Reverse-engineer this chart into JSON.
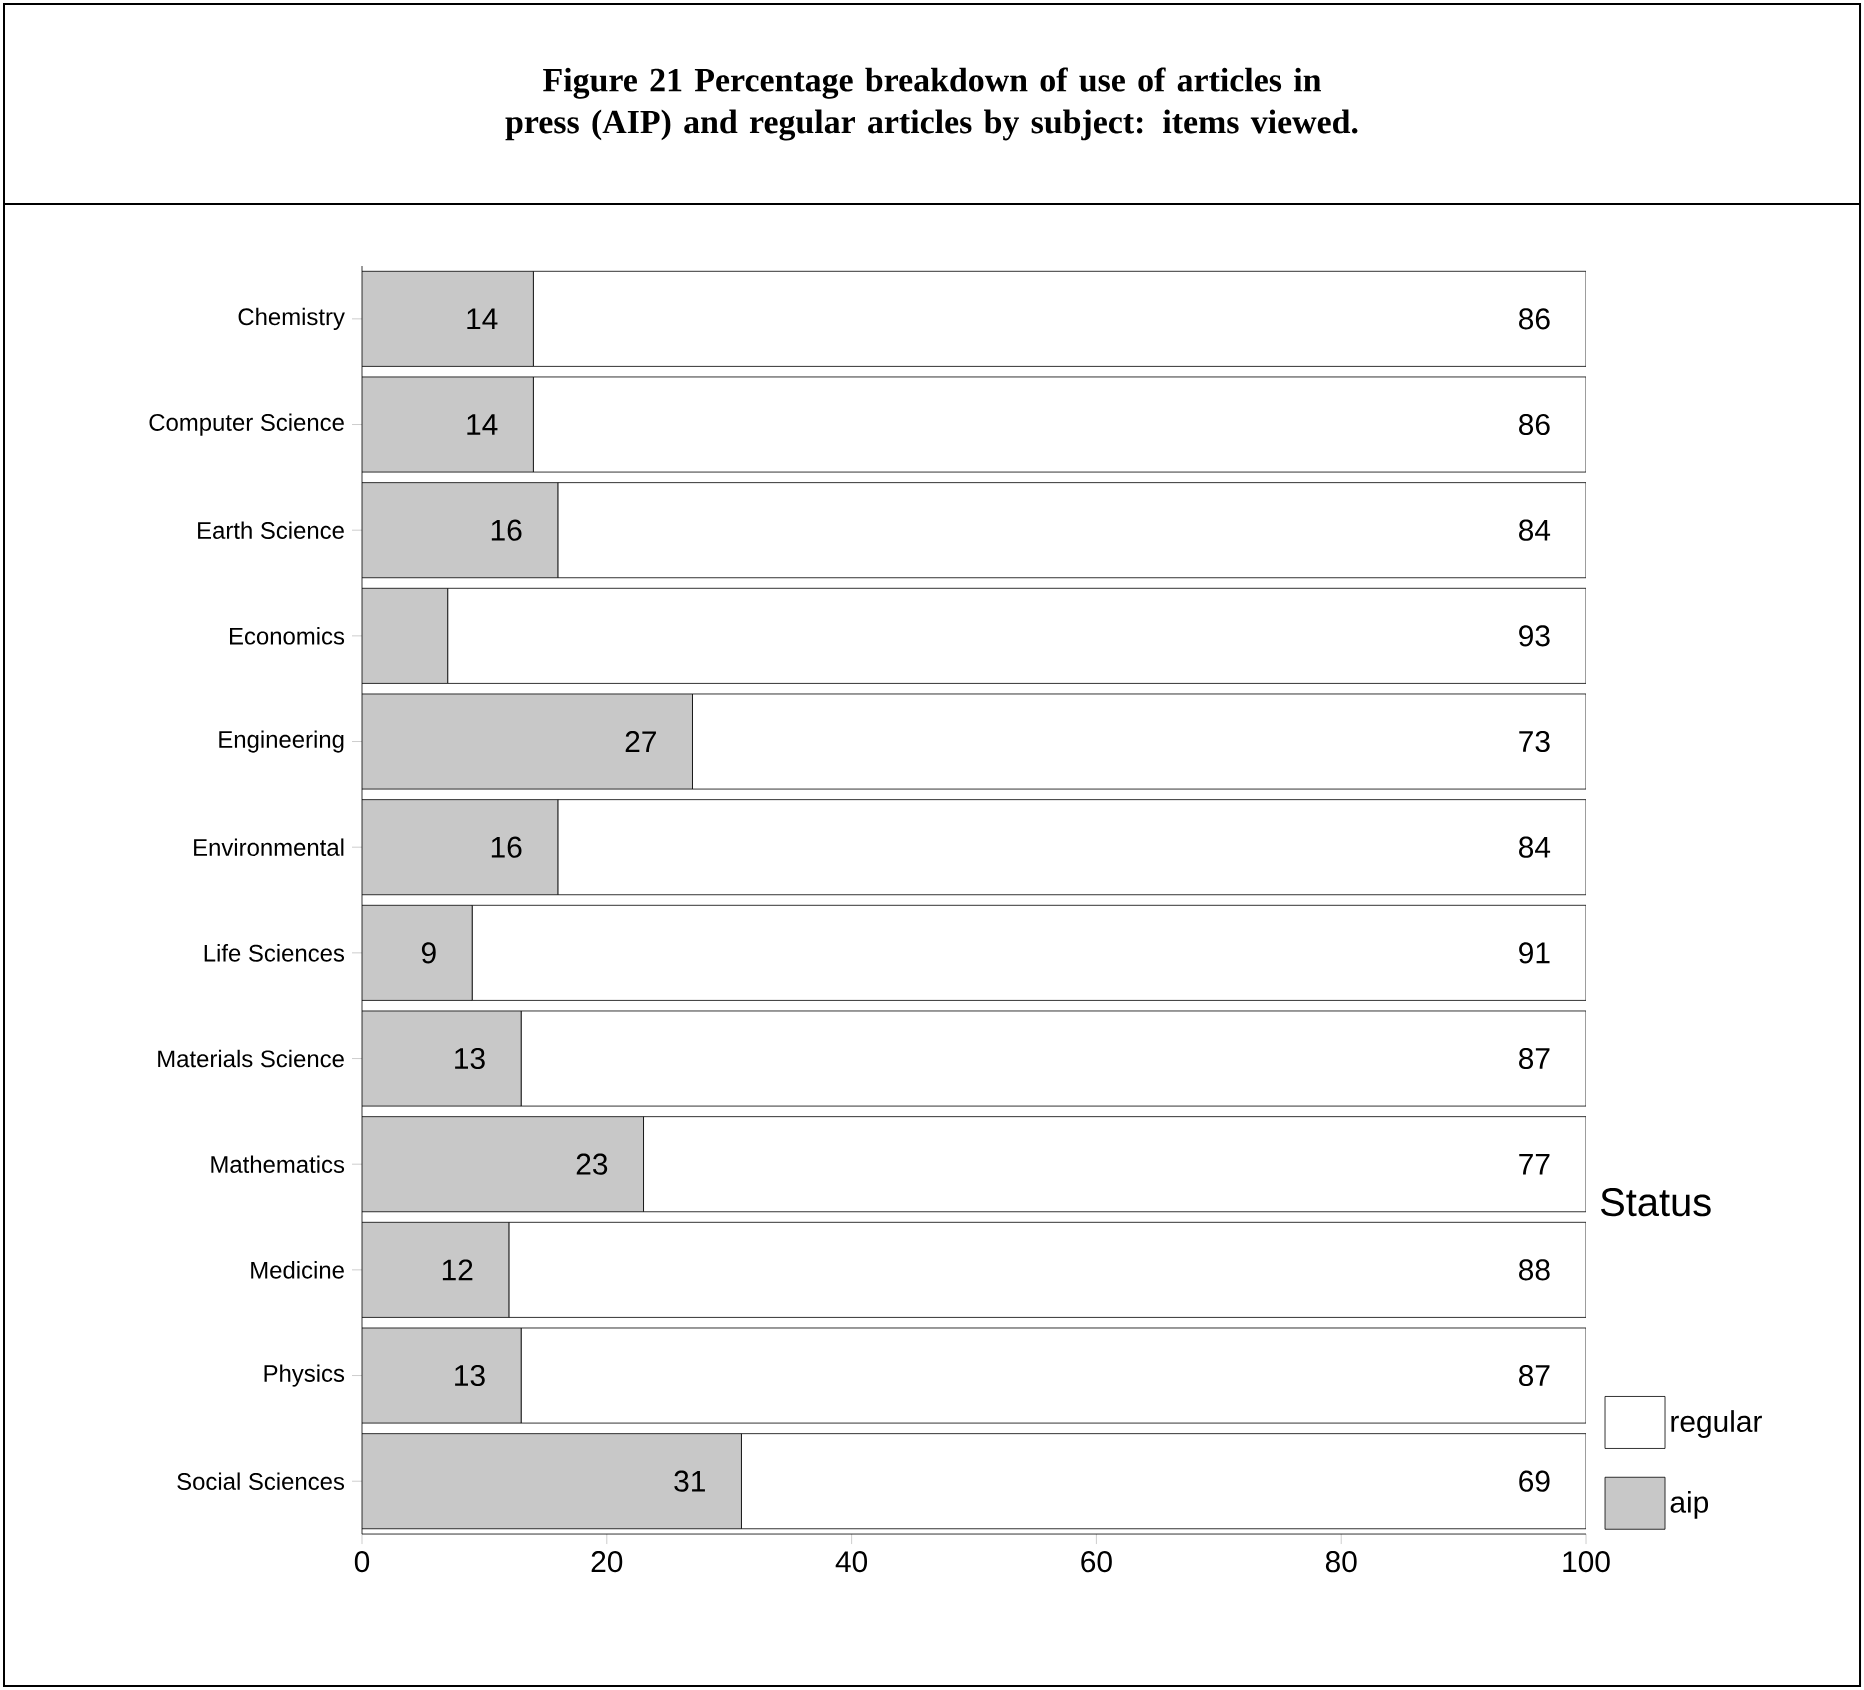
{
  "chart_data": {
    "type": "bar",
    "orientation": "horizontal",
    "stacked": true,
    "title": "Figure 21 Percentage breakdown of use of articles in press (AIP) and regular articles by subject: items viewed.",
    "legend_title": "Status",
    "categories": [
      "Chemistry",
      "Computer Science",
      "Earth Science",
      "Economics",
      "Engineering",
      "Environmental",
      "Life Sciences",
      "Materials Science",
      "Mathematics",
      "Medicine",
      "Physics",
      "Social Sciences"
    ],
    "series": [
      {
        "name": "aip",
        "color": "#c8c8c8",
        "values": [
          14,
          14,
          16,
          7,
          27,
          16,
          9,
          13,
          23,
          12,
          13,
          31
        ],
        "value_labels": [
          "14",
          "14",
          "16",
          null,
          "27",
          "16",
          "9",
          "13",
          "23",
          "12",
          "13",
          "31"
        ]
      },
      {
        "name": "regular",
        "color": "#ffffff",
        "values": [
          86,
          86,
          84,
          93,
          73,
          84,
          91,
          87,
          77,
          88,
          87,
          69
        ],
        "value_labels": [
          "86",
          "86",
          "84",
          "93",
          "73",
          "84",
          "91",
          "87",
          "77",
          "88",
          "87",
          "69"
        ]
      }
    ],
    "xlim": [
      0,
      100
    ],
    "xticks": [
      0,
      20,
      40,
      60,
      80,
      100
    ],
    "legend": "bottom right"
  }
}
